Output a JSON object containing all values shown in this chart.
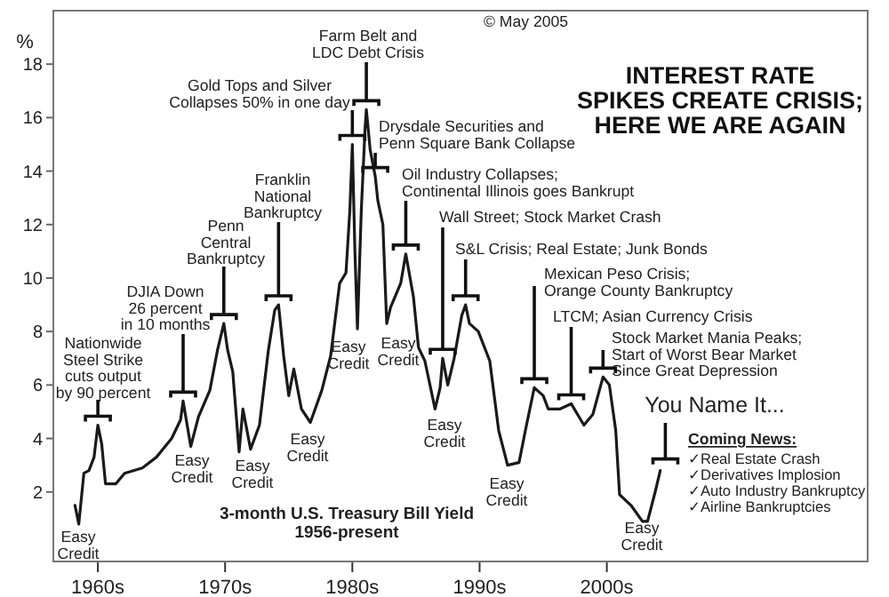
{
  "chart_data": {
    "type": "line",
    "title": "INTEREST RATE\nSPIKES CREATE CRISIS;\nHERE WE ARE AGAIN",
    "ylabel": "%",
    "x": [
      1958.2,
      1958.5,
      1958.9,
      1959.3,
      1959.7,
      1960.0,
      1960.3,
      1960.6,
      1961.4,
      1962.1,
      1963.5,
      1964.6,
      1965.8,
      1966.5,
      1966.7,
      1967.3,
      1967.9,
      1968.8,
      1969.4,
      1969.9,
      1970.2,
      1970.6,
      1971.1,
      1971.4,
      1972.0,
      1972.7,
      1973.4,
      1973.9,
      1974.2,
      1974.6,
      1975.0,
      1975.4,
      1976.0,
      1976.7,
      1977.6,
      1978.3,
      1979.0,
      1979.5,
      1979.8,
      1980.0,
      1980.2,
      1980.4,
      1980.7,
      1981.0,
      1981.1,
      1981.4,
      1981.8,
      1982.0,
      1982.4,
      1982.7,
      1983.0,
      1983.8,
      1984.2,
      1984.8,
      1985.2,
      1985.7,
      1986.5,
      1986.9,
      1987.1,
      1987.5,
      1988.0,
      1988.6,
      1988.9,
      1989.2,
      1989.9,
      1990.8,
      1991.5,
      1992.2,
      1993.1,
      1993.6,
      1994.3,
      1995.0,
      1995.4,
      1996.3,
      1997.2,
      1997.7,
      1998.2,
      1998.9,
      1999.7,
      2000.2,
      2000.7,
      2001.0,
      2001.9,
      2002.8,
      2003.2,
      2003.8,
      2004.2
    ],
    "series": [
      {
        "color": "#1a1a1a",
        "values": [
          1.5,
          0.8,
          2.7,
          2.8,
          3.3,
          4.5,
          3.8,
          2.3,
          2.3,
          2.7,
          2.9,
          3.3,
          4.0,
          4.7,
          5.4,
          3.7,
          4.8,
          5.8,
          7.3,
          8.3,
          7.3,
          6.5,
          3.5,
          5.1,
          3.6,
          4.5,
          7.3,
          8.8,
          9.0,
          7.1,
          5.6,
          6.6,
          5.1,
          4.6,
          5.8,
          7.1,
          9.8,
          10.2,
          12.5,
          15.0,
          11.0,
          8.1,
          12.5,
          15.6,
          16.3,
          14.8,
          13.8,
          12.9,
          12.0,
          8.3,
          8.9,
          9.8,
          10.9,
          9.3,
          7.4,
          6.9,
          5.1,
          5.9,
          7.0,
          6.0,
          7.0,
          8.6,
          9.0,
          8.3,
          8.0,
          6.9,
          4.3,
          3.0,
          3.1,
          4.3,
          5.9,
          5.6,
          5.1,
          5.1,
          5.3,
          4.9,
          4.5,
          4.9,
          6.3,
          6.0,
          4.3,
          1.9,
          1.5,
          0.9,
          0.9,
          2.0,
          2.8
        ]
      }
    ],
    "xlim": [
      1956.5,
      2020.5
    ],
    "xticks": [
      {
        "value": 1960,
        "label": "1960s"
      },
      {
        "value": 1970,
        "label": "1970s"
      },
      {
        "value": 1980,
        "label": "1980s"
      },
      {
        "value": 1990,
        "label": "1990s"
      },
      {
        "value": 2000,
        "label": "2000s"
      }
    ],
    "ylim": [
      -0.6,
      20
    ],
    "yticks": [
      2,
      4,
      6,
      8,
      10,
      12,
      14,
      16,
      18
    ],
    "annotations": [
      "© May 2005",
      {
        "text": "Nationwide\nSteel Strike\ncuts output\nby 90 percent",
        "x": 1960.0,
        "y": 4.5
      },
      {
        "text": "DJIA Down\n26 percent\nin 10 months",
        "x": 1966.7,
        "y": 5.4
      },
      {
        "text": "Penn\nCentral\nBankruptcy",
        "x": 1969.9,
        "y": 8.3
      },
      {
        "text": "Franklin\nNational\nBankruptcy",
        "x": 1974.2,
        "y": 9.0
      },
      {
        "text": "Gold Tops and Silver\nCollapses 50% in one day",
        "x": 1980.0,
        "y": 15.0
      },
      {
        "text": "Farm Belt and\nLDC Debt Crisis",
        "x": 1981.1,
        "y": 16.3
      },
      {
        "text": "Drysdale Securities and\nPenn Square Bank Collapse",
        "x": 1981.8,
        "y": 13.8
      },
      {
        "text": "Oil Industry Collapses;\nContinental Illinois goes Bankrupt",
        "x": 1984.2,
        "y": 10.9
      },
      {
        "text": "Wall Street; Stock Market Crash",
        "x": 1987.1,
        "y": 7.0
      },
      {
        "text": "S&L Crisis; Real Estate; Junk Bonds",
        "x": 1988.9,
        "y": 9.0
      },
      {
        "text": "Mexican Peso Crisis;\nOrange County Bankruptcy",
        "x": 1994.3,
        "y": 5.9
      },
      {
        "text": "LTCM; Asian Currency Crisis",
        "x": 1997.2,
        "y": 5.3
      },
      {
        "text": "Stock Market Mania Peaks;\nStart of Worst Bear Market\nSince Great Depression",
        "x": 1999.7,
        "y": 6.3
      },
      {
        "text": "You Name It...",
        "x": 2004.6,
        "y": 2.9
      },
      {
        "text": "Easy\nCredit",
        "x": 1958.5,
        "y": 0.8
      },
      {
        "text": "Easy\nCredit",
        "x": 1967.3,
        "y": 3.7
      },
      {
        "text": "Easy\nCredit",
        "x": 1972.0,
        "y": 3.6
      },
      {
        "text": "Easy\nCredit",
        "x": 1976.7,
        "y": 4.6
      },
      {
        "text": "Easy\nCredit",
        "x": 1980.4,
        "y": 8.1
      },
      {
        "text": "Easy\nCredit",
        "x": 1982.7,
        "y": 8.3
      },
      {
        "text": "Easy\nCredit",
        "x": 1986.5,
        "y": 5.1
      },
      {
        "text": "Easy\nCredit",
        "x": 1992.2,
        "y": 3.0
      },
      {
        "text": "Easy\nCredit",
        "x": 2002.8,
        "y": 0.9
      },
      "3-month U.S. Treasury Bill Yield\n1956-present",
      "Coming News:",
      "✓Real Estate Crash",
      "✓Derivatives Implosion",
      "✓Auto Industry Bankruptcy",
      "✓Airline Bankruptcies"
    ]
  }
}
